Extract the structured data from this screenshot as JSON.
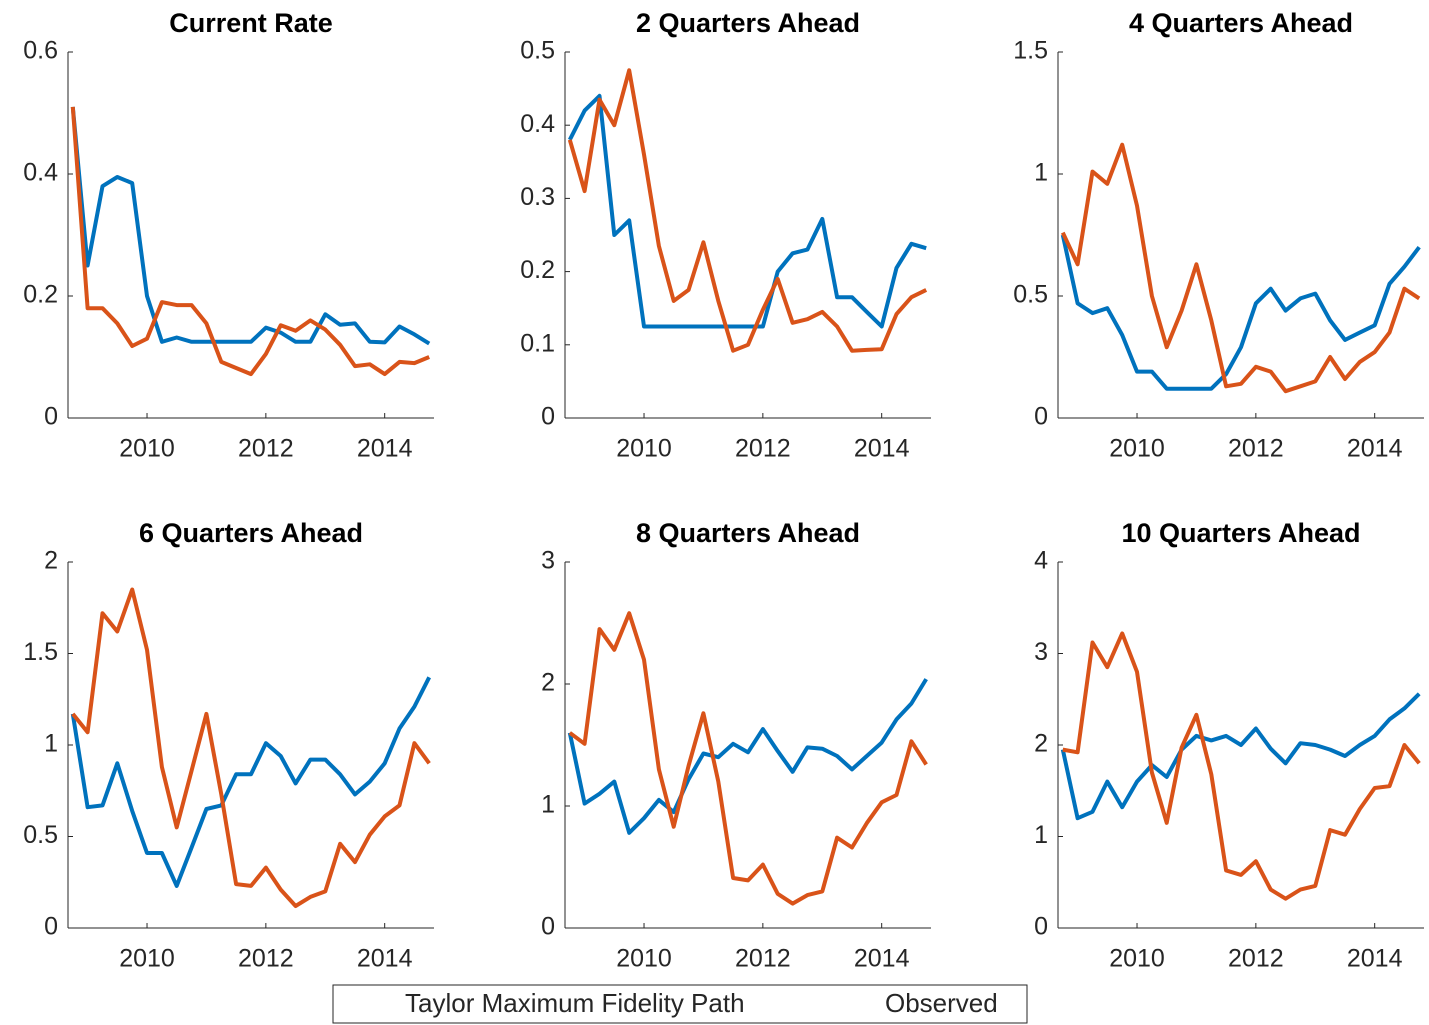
{
  "chart_data": [
    {
      "type": "line",
      "title": "Current Rate",
      "x": [
        2008.75,
        2009,
        2009.25,
        2009.5,
        2009.75,
        2010,
        2010.25,
        2010.5,
        2010.75,
        2011,
        2011.25,
        2011.5,
        2011.75,
        2012,
        2012.25,
        2012.5,
        2012.75,
        2013,
        2013.25,
        2013.5,
        2013.75,
        2014,
        2014.25,
        2014.5,
        2014.75
      ],
      "xlim": [
        2008.67,
        2014.83
      ],
      "xticks": [
        2010,
        2012,
        2014
      ],
      "ylim": [
        0,
        0.6
      ],
      "yticks": [
        0,
        0.2,
        0.4,
        0.6
      ],
      "series": [
        {
          "name": "Taylor Maximum Fidelity Path",
          "color": "#0072bd",
          "values": [
            0.51,
            0.25,
            0.38,
            0.395,
            0.385,
            0.2,
            0.125,
            0.132,
            0.125,
            0.125,
            0.125,
            0.125,
            0.125,
            0.148,
            0.14,
            0.125,
            0.125,
            0.17,
            0.153,
            0.155,
            0.125,
            0.124,
            0.15,
            0.137,
            0.122
          ]
        },
        {
          "name": "Observed",
          "color": "#d95319",
          "values": [
            0.51,
            0.18,
            0.18,
            0.155,
            0.118,
            0.13,
            0.19,
            0.185,
            0.185,
            0.155,
            0.092,
            0.082,
            0.072,
            0.105,
            0.152,
            0.143,
            0.16,
            0.145,
            0.12,
            0.085,
            0.088,
            0.072,
            0.092,
            0.09,
            0.1
          ]
        }
      ]
    },
    {
      "type": "line",
      "title": "2 Quarters Ahead",
      "x": [
        2008.75,
        2009,
        2009.25,
        2009.5,
        2009.75,
        2010,
        2010.25,
        2010.5,
        2010.75,
        2011,
        2011.25,
        2011.5,
        2011.75,
        2012,
        2012.25,
        2012.5,
        2012.75,
        2013,
        2013.25,
        2013.5,
        2013.75,
        2014,
        2014.25,
        2014.5,
        2014.75
      ],
      "xlim": [
        2008.67,
        2014.83
      ],
      "xticks": [
        2010,
        2012,
        2014
      ],
      "ylim": [
        0,
        0.5
      ],
      "yticks": [
        0,
        0.1,
        0.2,
        0.3,
        0.4,
        0.5
      ],
      "series": [
        {
          "color": "#0072bd",
          "values": [
            0.38,
            0.42,
            0.44,
            0.25,
            0.27,
            0.125,
            0.125,
            0.125,
            0.125,
            0.125,
            0.125,
            0.125,
            0.125,
            0.125,
            0.2,
            0.225,
            0.23,
            0.272,
            0.165,
            0.165,
            0.145,
            0.125,
            0.205,
            0.238,
            0.232
          ]
        },
        {
          "color": "#d95319",
          "values": [
            0.38,
            0.31,
            0.435,
            0.4,
            0.475,
            0.36,
            0.235,
            0.16,
            0.175,
            0.24,
            0.16,
            0.092,
            0.1,
            0.148,
            0.19,
            0.13,
            0.135,
            0.145,
            0.125,
            0.092,
            0.093,
            0.094,
            0.142,
            0.165,
            0.175
          ]
        }
      ]
    },
    {
      "type": "line",
      "title": "4 Quarters Ahead",
      "x": [
        2008.75,
        2009,
        2009.25,
        2009.5,
        2009.75,
        2010,
        2010.25,
        2010.5,
        2010.75,
        2011,
        2011.25,
        2011.5,
        2011.75,
        2012,
        2012.25,
        2012.5,
        2012.75,
        2013,
        2013.25,
        2013.5,
        2013.75,
        2014,
        2014.25,
        2014.5,
        2014.75
      ],
      "xlim": [
        2008.67,
        2014.83
      ],
      "xticks": [
        2010,
        2012,
        2014
      ],
      "ylim": [
        0,
        1.5
      ],
      "yticks": [
        0,
        0.5,
        1,
        1.5
      ],
      "series": [
        {
          "color": "#0072bd",
          "values": [
            0.75,
            0.47,
            0.43,
            0.45,
            0.34,
            0.19,
            0.19,
            0.12,
            0.12,
            0.12,
            0.12,
            0.18,
            0.29,
            0.47,
            0.53,
            0.44,
            0.49,
            0.51,
            0.4,
            0.32,
            0.35,
            0.38,
            0.55,
            0.62,
            0.7
          ]
        },
        {
          "color": "#d95319",
          "values": [
            0.76,
            0.63,
            1.01,
            0.96,
            1.12,
            0.87,
            0.5,
            0.29,
            0.44,
            0.63,
            0.4,
            0.13,
            0.14,
            0.21,
            0.19,
            0.11,
            0.13,
            0.15,
            0.25,
            0.16,
            0.23,
            0.27,
            0.35,
            0.53,
            0.49
          ]
        }
      ]
    },
    {
      "type": "line",
      "title": "6 Quarters Ahead",
      "x": [
        2008.75,
        2009,
        2009.25,
        2009.5,
        2009.75,
        2010,
        2010.25,
        2010.5,
        2010.75,
        2011,
        2011.25,
        2011.5,
        2011.75,
        2012,
        2012.25,
        2012.5,
        2012.75,
        2013,
        2013.25,
        2013.5,
        2013.75,
        2014,
        2014.25,
        2014.5,
        2014.75
      ],
      "xlim": [
        2008.67,
        2014.83
      ],
      "xticks": [
        2010,
        2012,
        2014
      ],
      "ylim": [
        0,
        2
      ],
      "yticks": [
        0,
        0.5,
        1,
        1.5,
        2
      ],
      "series": [
        {
          "color": "#0072bd",
          "values": [
            1.17,
            0.66,
            0.67,
            0.9,
            0.64,
            0.41,
            0.41,
            0.23,
            0.44,
            0.65,
            0.67,
            0.84,
            0.84,
            1.01,
            0.94,
            0.79,
            0.92,
            0.92,
            0.84,
            0.73,
            0.8,
            0.9,
            1.09,
            1.21,
            1.37
          ]
        },
        {
          "color": "#d95319",
          "values": [
            1.17,
            1.07,
            1.72,
            1.62,
            1.85,
            1.52,
            0.88,
            0.55,
            0.86,
            1.17,
            0.73,
            0.24,
            0.23,
            0.33,
            0.21,
            0.12,
            0.17,
            0.2,
            0.46,
            0.36,
            0.51,
            0.61,
            0.67,
            1.01,
            0.9
          ]
        }
      ]
    },
    {
      "type": "line",
      "title": "8 Quarters Ahead",
      "x": [
        2008.75,
        2009,
        2009.25,
        2009.5,
        2009.75,
        2010,
        2010.25,
        2010.5,
        2010.75,
        2011,
        2011.25,
        2011.5,
        2011.75,
        2012,
        2012.25,
        2012.5,
        2012.75,
        2013,
        2013.25,
        2013.5,
        2013.75,
        2014,
        2014.25,
        2014.5,
        2014.75
      ],
      "xlim": [
        2008.67,
        2014.83
      ],
      "xticks": [
        2010,
        2012,
        2014
      ],
      "ylim": [
        0,
        3
      ],
      "yticks": [
        0,
        1,
        2,
        3
      ],
      "series": [
        {
          "color": "#0072bd",
          "values": [
            1.6,
            1.02,
            1.1,
            1.2,
            0.78,
            0.9,
            1.05,
            0.95,
            1.22,
            1.43,
            1.4,
            1.51,
            1.44,
            1.63,
            1.45,
            1.28,
            1.48,
            1.47,
            1.41,
            1.3,
            1.41,
            1.52,
            1.71,
            1.84,
            2.04
          ]
        },
        {
          "color": "#d95319",
          "values": [
            1.6,
            1.51,
            2.45,
            2.28,
            2.58,
            2.2,
            1.3,
            0.83,
            1.33,
            1.76,
            1.2,
            0.41,
            0.39,
            0.52,
            0.28,
            0.2,
            0.27,
            0.3,
            0.74,
            0.66,
            0.86,
            1.03,
            1.09,
            1.53,
            1.34
          ]
        }
      ]
    },
    {
      "type": "line",
      "title": "10 Quarters Ahead",
      "x": [
        2008.75,
        2009,
        2009.25,
        2009.5,
        2009.75,
        2010,
        2010.25,
        2010.5,
        2010.75,
        2011,
        2011.25,
        2011.5,
        2011.75,
        2012,
        2012.25,
        2012.5,
        2012.75,
        2013,
        2013.25,
        2013.5,
        2013.75,
        2014,
        2014.25,
        2014.5,
        2014.75
      ],
      "xlim": [
        2008.67,
        2014.83
      ],
      "xticks": [
        2010,
        2012,
        2014
      ],
      "ylim": [
        0,
        4
      ],
      "yticks": [
        0,
        1,
        2,
        3,
        4
      ],
      "series": [
        {
          "color": "#0072bd",
          "values": [
            1.95,
            1.2,
            1.27,
            1.6,
            1.32,
            1.6,
            1.78,
            1.65,
            1.95,
            2.1,
            2.05,
            2.1,
            2,
            2.18,
            1.96,
            1.8,
            2.02,
            2,
            1.95,
            1.88,
            2,
            2.1,
            2.28,
            2.4,
            2.56
          ]
        },
        {
          "color": "#d95319",
          "values": [
            1.95,
            1.92,
            3.12,
            2.85,
            3.22,
            2.8,
            1.7,
            1.15,
            1.97,
            2.33,
            1.68,
            0.63,
            0.58,
            0.73,
            0.42,
            0.32,
            0.42,
            0.46,
            1.07,
            1.02,
            1.3,
            1.53,
            1.55,
            2,
            1.8
          ]
        }
      ]
    }
  ]
}
